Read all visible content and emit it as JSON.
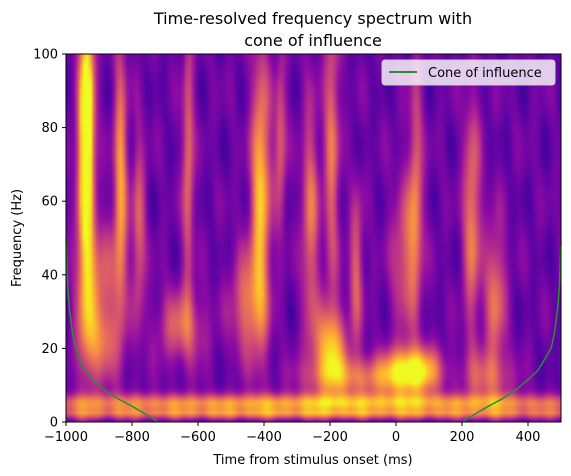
{
  "chart_data": {
    "type": "heatmap",
    "title_lines": [
      "Time-resolved frequency spectrum with",
      "cone of influence"
    ],
    "xlabel": "Time from stimulus onset (ms)",
    "ylabel": "Frequency (Hz)",
    "xlim": [
      -1000,
      500
    ],
    "ylim": [
      0,
      100
    ],
    "x_ticks": [
      -1000,
      -800,
      -600,
      -400,
      -200,
      0,
      200,
      400
    ],
    "x_tick_labels": [
      "−1000",
      "−800",
      "−600",
      "−400",
      "−200",
      "0",
      "200",
      "400"
    ],
    "y_ticks": [
      0,
      20,
      40,
      60,
      80,
      100
    ],
    "y_tick_labels": [
      "0",
      "20",
      "40",
      "60",
      "80",
      "100"
    ],
    "colormap": "plasma",
    "grid": false,
    "legend": {
      "placement": "top-right",
      "entries": [
        {
          "label": "Cone of influence",
          "color": "#2e8b3a"
        }
      ]
    },
    "series": [
      {
        "name": "Cone of influence",
        "color": "#2e8b3a",
        "segments": [
          {
            "x": [
              -1000,
              -995,
              -990,
              -980,
              -970,
              -950,
              -920,
              -880,
              -840,
              -800,
              -760,
              -720
            ],
            "y": [
              50,
              37,
              31,
              24,
              20,
              15,
              11.5,
              8.5,
              6.2,
              4.3,
              2.2,
              0
            ]
          },
          {
            "x": [
              200,
              240,
              280,
              320,
              360,
              400,
              430,
              450,
              470,
              480,
              490,
              495,
              500
            ],
            "y": [
              0,
              2.2,
              4.3,
              6.2,
              8.5,
              11.5,
              14,
              17,
              20,
              24,
              31,
              37,
              49
            ]
          }
        ]
      }
    ],
    "power_blobs": [
      {
        "t": -940,
        "f": 68,
        "dt": 18,
        "df": 30,
        "a": 0.85
      },
      {
        "t": -935,
        "f": 86,
        "dt": 12,
        "df": 14,
        "a": 0.55
      },
      {
        "t": -835,
        "f": 64,
        "dt": 14,
        "df": 26,
        "a": 0.6
      },
      {
        "t": -900,
        "f": 40,
        "dt": 40,
        "df": 10,
        "a": 0.35
      },
      {
        "t": -780,
        "f": 52,
        "dt": 14,
        "df": 18,
        "a": 0.4
      },
      {
        "t": -630,
        "f": 70,
        "dt": 12,
        "df": 25,
        "a": 0.45
      },
      {
        "t": -410,
        "f": 62,
        "dt": 20,
        "df": 26,
        "a": 0.7
      },
      {
        "t": -450,
        "f": 32,
        "dt": 35,
        "df": 10,
        "a": 0.45
      },
      {
        "t": -350,
        "f": 76,
        "dt": 12,
        "df": 16,
        "a": 0.4
      },
      {
        "t": -260,
        "f": 55,
        "dt": 18,
        "df": 22,
        "a": 0.45
      },
      {
        "t": -195,
        "f": 75,
        "dt": 16,
        "df": 28,
        "a": 0.45
      },
      {
        "t": -200,
        "f": 20,
        "dt": 35,
        "df": 8,
        "a": 0.65
      },
      {
        "t": -120,
        "f": 42,
        "dt": 14,
        "df": 14,
        "a": 0.4
      },
      {
        "t": 30,
        "f": 45,
        "dt": 30,
        "df": 14,
        "a": 0.4
      },
      {
        "t": 60,
        "f": 66,
        "dt": 14,
        "df": 22,
        "a": 0.4
      },
      {
        "t": 230,
        "f": 55,
        "dt": 18,
        "df": 22,
        "a": 0.5
      },
      {
        "t": 300,
        "f": 34,
        "dt": 22,
        "df": 14,
        "a": 0.45
      },
      {
        "t": -650,
        "f": 26,
        "dt": 50,
        "df": 7,
        "a": 0.4
      },
      {
        "t": -900,
        "f": 22,
        "dt": 40,
        "df": 8,
        "a": 0.45
      },
      {
        "t": 50,
        "f": 14,
        "dt": 55,
        "df": 4.5,
        "a": 0.8
      },
      {
        "t": -100,
        "f": 12,
        "dt": 120,
        "df": 4,
        "a": 0.45
      },
      {
        "t": 280,
        "f": 12,
        "dt": 50,
        "df": 5,
        "a": 0.35
      },
      {
        "t": -250,
        "f": 5,
        "dt": 900,
        "df": 1.8,
        "a": 0.6
      },
      {
        "t": -250,
        "f": 2.2,
        "dt": 900,
        "df": 0.9,
        "a": 0.4
      }
    ]
  }
}
